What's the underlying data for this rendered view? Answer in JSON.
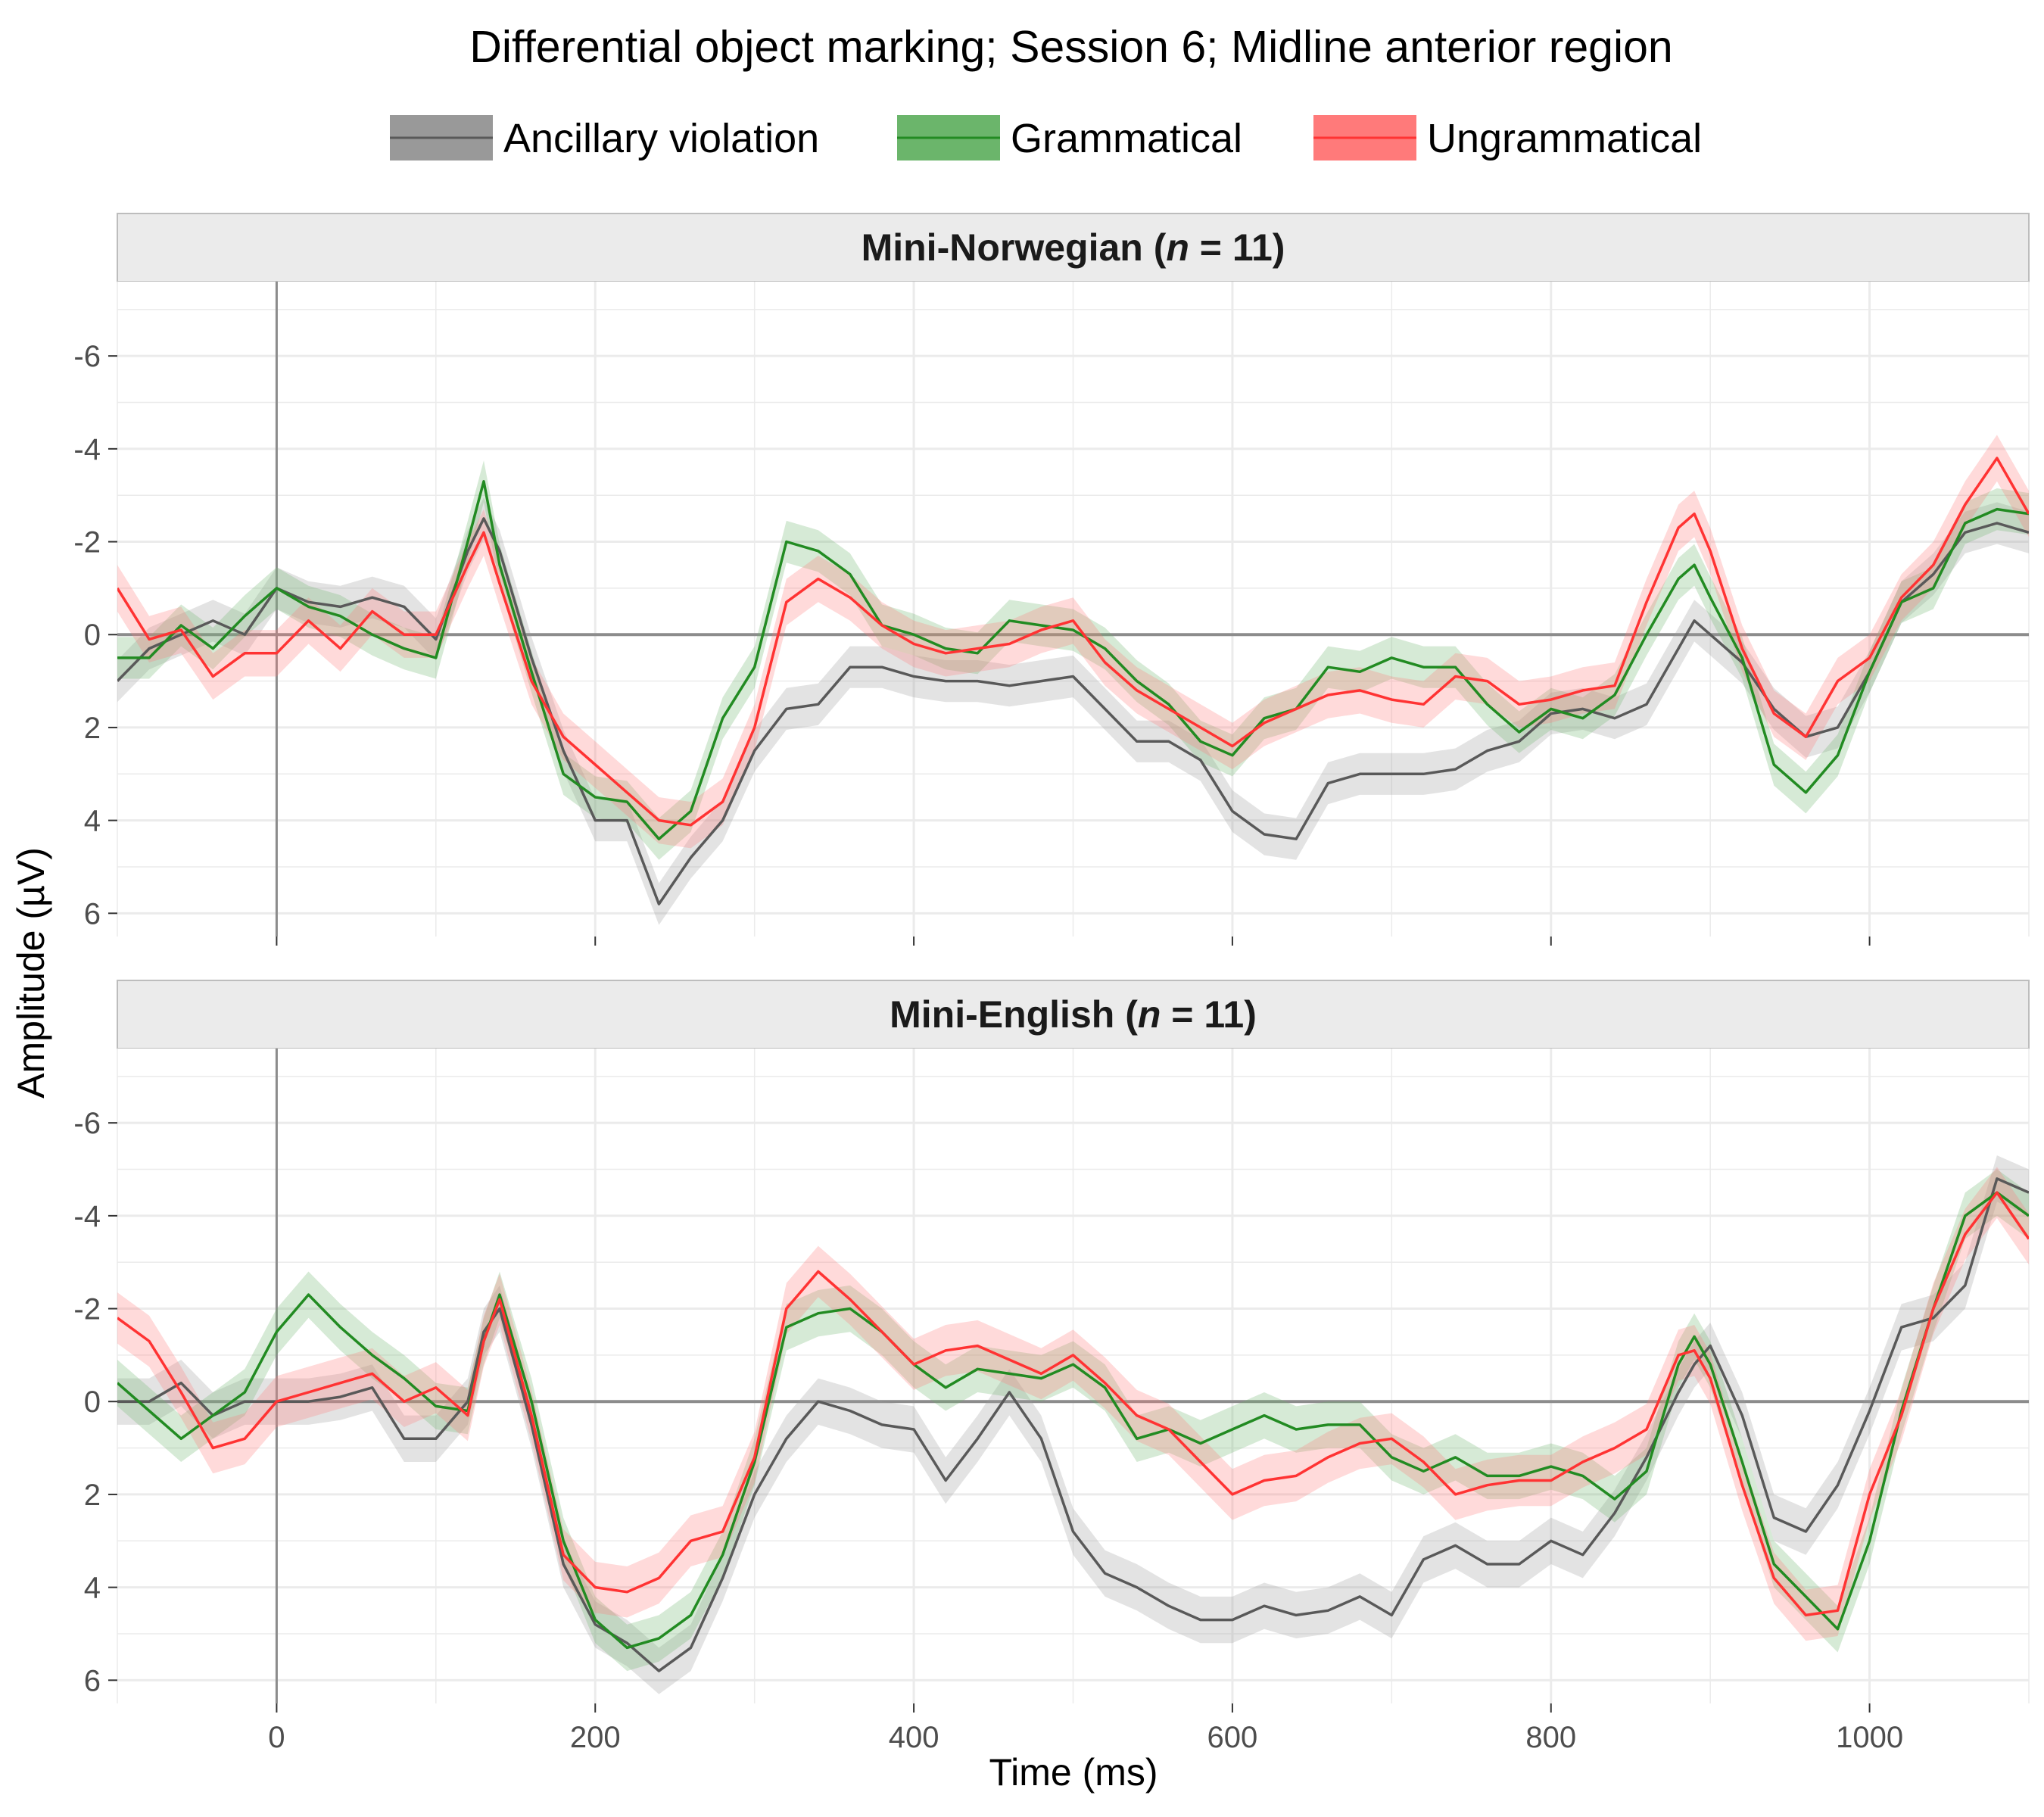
{
  "chart_data": {
    "type": "line",
    "title": "Differential object marking; Session 6; Midline anterior region",
    "xlabel": "Time (ms)",
    "ylabel": "Amplitude (µV)",
    "xlim": [
      -100,
      1100
    ],
    "ylim": [
      6.5,
      -7.6
    ],
    "y_reversed": true,
    "x_ticks": [
      0,
      200,
      400,
      600,
      800,
      1000
    ],
    "x_tick_labels": [
      "0",
      "200",
      "400",
      "600",
      "800",
      "1000"
    ],
    "y_ticks": [
      -6,
      -4,
      -2,
      0,
      2,
      4,
      6
    ],
    "y_tick_labels": [
      "-6",
      "-4",
      "-2",
      "0",
      "2",
      "4",
      "6"
    ],
    "legend_position": "top",
    "legend": [
      {
        "name": "Ancillary violation",
        "color": "#595959",
        "fill": "#999999"
      },
      {
        "name": "Grammatical",
        "color": "#228B22",
        "fill": "#6BB56B"
      },
      {
        "name": "Ungrammatical",
        "color": "#FF3333",
        "fill": "#FF7A7A"
      }
    ],
    "panels": [
      {
        "strip_label": "Mini-Norwegian (",
        "strip_n": "n",
        "strip_rest": " = 11)",
        "x": [
          -100,
          -80,
          -60,
          -40,
          -20,
          0,
          20,
          40,
          60,
          80,
          100,
          120,
          130,
          140,
          160,
          180,
          200,
          220,
          240,
          260,
          280,
          300,
          320,
          340,
          360,
          380,
          400,
          420,
          440,
          460,
          480,
          500,
          520,
          540,
          560,
          580,
          600,
          620,
          640,
          660,
          680,
          700,
          720,
          740,
          760,
          780,
          800,
          820,
          840,
          860,
          880,
          890,
          900,
          920,
          940,
          960,
          980,
          1000,
          1020,
          1040,
          1060,
          1080,
          1100
        ],
        "series": [
          {
            "name": "Ancillary violation",
            "ci": 0.45,
            "values": [
              1.0,
              0.3,
              0.0,
              -0.3,
              0.0,
              -1.0,
              -0.7,
              -0.6,
              -0.8,
              -0.6,
              0.1,
              -1.8,
              -2.5,
              -1.8,
              0.5,
              2.5,
              4.0,
              4.0,
              5.8,
              4.8,
              4.0,
              2.5,
              1.6,
              1.5,
              0.7,
              0.7,
              0.9,
              1.0,
              1.0,
              1.1,
              1.0,
              0.9,
              1.6,
              2.3,
              2.3,
              2.7,
              3.8,
              4.3,
              4.4,
              3.2,
              3.0,
              3.0,
              3.0,
              2.9,
              2.5,
              2.3,
              1.7,
              1.6,
              1.8,
              1.5,
              0.3,
              -0.3,
              0.0,
              0.6,
              1.6,
              2.2,
              2.0,
              0.8,
              -0.7,
              -1.3,
              -2.2,
              -2.4,
              -2.2
            ]
          },
          {
            "name": "Grammatical",
            "ci": 0.45,
            "values": [
              0.5,
              0.5,
              -0.2,
              0.3,
              -0.4,
              -1.0,
              -0.6,
              -0.4,
              0.0,
              0.3,
              0.5,
              -2.0,
              -3.3,
              -1.5,
              0.8,
              3.0,
              3.5,
              3.6,
              4.4,
              3.8,
              1.8,
              0.7,
              -2.0,
              -1.8,
              -1.3,
              -0.2,
              0.0,
              0.3,
              0.4,
              -0.3,
              -0.2,
              -0.1,
              0.3,
              1.0,
              1.5,
              2.3,
              2.6,
              1.8,
              1.6,
              0.7,
              0.8,
              0.5,
              0.7,
              0.7,
              1.5,
              2.1,
              1.6,
              1.8,
              1.3,
              0.0,
              -1.2,
              -1.5,
              -0.8,
              0.5,
              2.8,
              3.4,
              2.6,
              0.8,
              -0.7,
              -1.0,
              -2.4,
              -2.7,
              -2.6
            ]
          },
          {
            "name": "Ungrammatical",
            "ci": 0.5,
            "values": [
              -1.0,
              0.1,
              -0.1,
              0.9,
              0.4,
              0.4,
              -0.3,
              0.3,
              -0.5,
              0.0,
              0.0,
              -1.5,
              -2.2,
              -1.1,
              1.0,
              2.2,
              2.8,
              3.4,
              4.0,
              4.1,
              3.6,
              2.0,
              -0.7,
              -1.2,
              -0.8,
              -0.2,
              0.2,
              0.4,
              0.3,
              0.2,
              -0.1,
              -0.3,
              0.6,
              1.2,
              1.6,
              2.0,
              2.4,
              1.9,
              1.6,
              1.3,
              1.2,
              1.4,
              1.5,
              0.9,
              1.0,
              1.5,
              1.4,
              1.2,
              1.1,
              -0.7,
              -2.3,
              -2.6,
              -1.8,
              0.3,
              1.7,
              2.2,
              1.0,
              0.5,
              -0.8,
              -1.5,
              -2.8,
              -3.8,
              -2.6
            ]
          }
        ]
      },
      {
        "strip_label": "Mini-English (",
        "strip_n": "n",
        "strip_rest": " = 11)",
        "x": [
          -100,
          -80,
          -60,
          -40,
          -20,
          0,
          20,
          40,
          60,
          80,
          100,
          120,
          130,
          140,
          160,
          180,
          200,
          220,
          240,
          260,
          280,
          300,
          320,
          340,
          360,
          380,
          400,
          420,
          440,
          460,
          480,
          500,
          520,
          540,
          560,
          580,
          600,
          620,
          640,
          660,
          680,
          700,
          720,
          740,
          760,
          780,
          800,
          820,
          840,
          860,
          880,
          890,
          900,
          920,
          940,
          960,
          980,
          1000,
          1020,
          1040,
          1060,
          1080,
          1100
        ],
        "series": [
          {
            "name": "Ancillary violation",
            "ci": 0.5,
            "values": [
              0.0,
              0.0,
              -0.4,
              0.3,
              0.0,
              0.0,
              0.0,
              -0.1,
              -0.3,
              0.8,
              0.8,
              0.0,
              -1.5,
              -2.0,
              0.5,
              3.5,
              4.8,
              5.2,
              5.8,
              5.3,
              3.8,
              2.0,
              0.8,
              0.0,
              0.2,
              0.5,
              0.6,
              1.7,
              0.8,
              -0.2,
              0.8,
              2.8,
              3.7,
              4.0,
              4.4,
              4.7,
              4.7,
              4.4,
              4.6,
              4.5,
              4.2,
              4.6,
              3.4,
              3.1,
              3.5,
              3.5,
              3.0,
              3.3,
              2.4,
              1.2,
              -0.2,
              -0.8,
              -1.2,
              0.3,
              2.5,
              2.8,
              1.8,
              0.2,
              -1.6,
              -1.8,
              -2.5,
              -4.8,
              -4.5
            ]
          },
          {
            "name": "Grammatical",
            "ci": 0.5,
            "values": [
              -0.4,
              0.2,
              0.8,
              0.3,
              -0.2,
              -1.5,
              -2.3,
              -1.6,
              -1.0,
              -0.5,
              0.1,
              0.2,
              -1.3,
              -2.3,
              0.0,
              3.0,
              4.7,
              5.3,
              5.1,
              4.6,
              3.3,
              1.3,
              -1.6,
              -1.9,
              -2.0,
              -1.5,
              -0.8,
              -0.3,
              -0.7,
              -0.6,
              -0.5,
              -0.8,
              -0.3,
              0.8,
              0.6,
              0.9,
              0.6,
              0.3,
              0.6,
              0.5,
              0.5,
              1.2,
              1.5,
              1.2,
              1.6,
              1.6,
              1.4,
              1.6,
              2.1,
              1.5,
              -0.8,
              -1.4,
              -0.8,
              1.3,
              3.5,
              4.2,
              4.9,
              3.0,
              0.2,
              -2.0,
              -4.0,
              -4.5,
              -4.0
            ]
          },
          {
            "name": "Ungrammatical",
            "ci": 0.55,
            "values": [
              -1.8,
              -1.3,
              -0.2,
              1.0,
              0.8,
              0.0,
              -0.2,
              -0.4,
              -0.6,
              0.0,
              -0.3,
              0.3,
              -1.3,
              -2.2,
              0.3,
              3.3,
              4.0,
              4.1,
              3.8,
              3.0,
              2.8,
              1.2,
              -2.0,
              -2.8,
              -2.2,
              -1.5,
              -0.8,
              -1.1,
              -1.2,
              -0.9,
              -0.6,
              -1.0,
              -0.4,
              0.3,
              0.6,
              1.3,
              2.0,
              1.7,
              1.6,
              1.2,
              0.9,
              0.8,
              1.3,
              2.0,
              1.8,
              1.7,
              1.7,
              1.3,
              1.0,
              0.6,
              -1.0,
              -1.1,
              -0.5,
              1.8,
              3.8,
              4.6,
              4.5,
              2.0,
              0.3,
              -2.0,
              -3.6,
              -4.5,
              -3.5
            ]
          }
        ]
      }
    ]
  }
}
